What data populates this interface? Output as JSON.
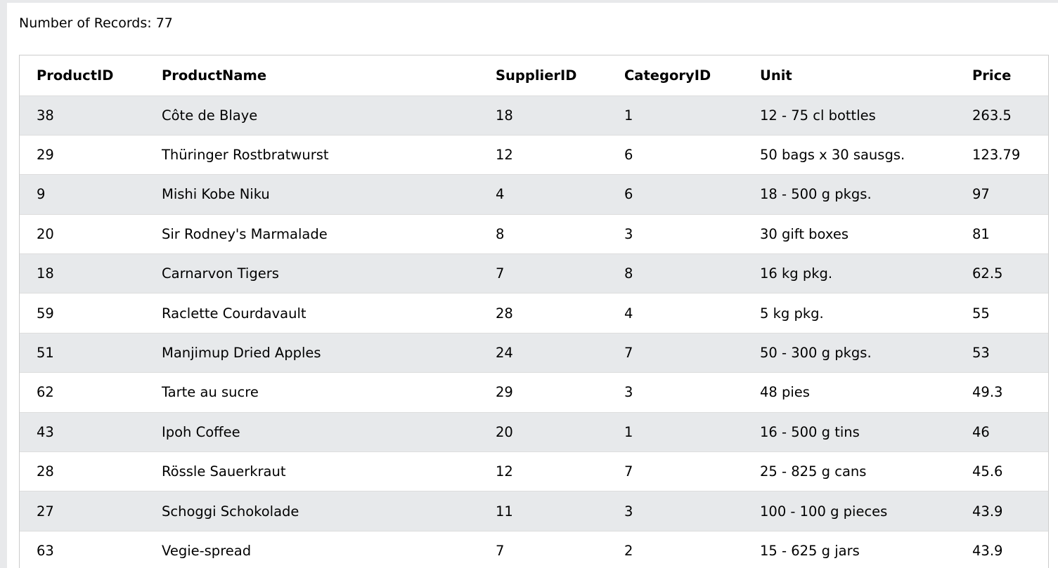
{
  "summary": {
    "record_count_text": "Number of Records: 77"
  },
  "table": {
    "columns": [
      "ProductID",
      "ProductName",
      "SupplierID",
      "CategoryID",
      "Unit",
      "Price"
    ],
    "rows": [
      [
        "38",
        "Côte de Blaye",
        "18",
        "1",
        "12 - 75 cl bottles",
        "263.5"
      ],
      [
        "29",
        "Thüringer Rostbratwurst",
        "12",
        "6",
        "50 bags x 30 sausgs.",
        "123.79"
      ],
      [
        "9",
        "Mishi Kobe Niku",
        "4",
        "6",
        "18 - 500 g pkgs.",
        "97"
      ],
      [
        "20",
        "Sir Rodney's Marmalade",
        "8",
        "3",
        "30 gift boxes",
        "81"
      ],
      [
        "18",
        "Carnarvon Tigers",
        "7",
        "8",
        "16 kg pkg.",
        "62.5"
      ],
      [
        "59",
        "Raclette Courdavault",
        "28",
        "4",
        "5 kg pkg.",
        "55"
      ],
      [
        "51",
        "Manjimup Dried Apples",
        "24",
        "7",
        "50 - 300 g pkgs.",
        "53"
      ],
      [
        "62",
        "Tarte au sucre",
        "29",
        "3",
        "48 pies",
        "49.3"
      ],
      [
        "43",
        "Ipoh Coffee",
        "20",
        "1",
        "16 - 500 g tins",
        "46"
      ],
      [
        "28",
        "Rössle Sauerkraut",
        "12",
        "7",
        "25 - 825 g cans",
        "45.6"
      ],
      [
        "27",
        "Schoggi Schokolade",
        "11",
        "3",
        "100 - 100 g pieces",
        "43.9"
      ],
      [
        "63",
        "Vegie-spread",
        "7",
        "2",
        "15 - 625 g jars",
        "43.9"
      ]
    ]
  }
}
